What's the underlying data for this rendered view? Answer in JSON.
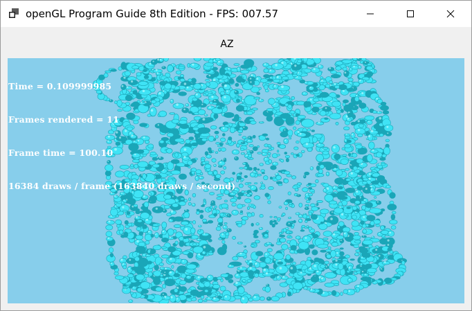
{
  "window": {
    "title": "openGL Program Guide 8th Edition - FPS: 007.57"
  },
  "header": {
    "label": "AZ"
  },
  "overlay": {
    "time_line": "Time = 0.109999985",
    "frames_line": "Frames rendered = 11",
    "frame_time_line": "Frame time = 100.10",
    "draws_line": "16384 draws / frame (163840 draws / second)"
  },
  "icons": {
    "app": "app-window-icon",
    "minimize": "minimize-icon",
    "maximize": "maximize-icon",
    "close": "close-icon"
  },
  "colors": {
    "viewport_background": "#87ceeb",
    "object_fill": "#3fe3f5",
    "object_shade": "#1aa6b8",
    "object_highlight": "#c9fbff"
  }
}
